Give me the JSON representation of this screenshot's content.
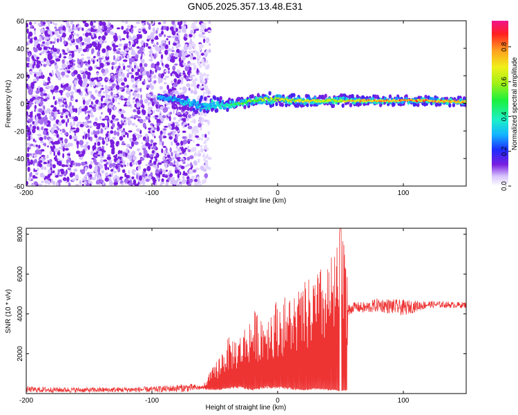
{
  "title": "GN05.2025.357.13.48.E31",
  "chart_data": [
    {
      "type": "heatmap",
      "xlabel": "Height of straight line (km)",
      "ylabel": "Frequency (Hz)",
      "xlim": [
        -200,
        150
      ],
      "ylim": [
        -60,
        60
      ],
      "xticks": [
        "-200",
        "-100",
        "0",
        "100"
      ],
      "xtick_values": [
        -200,
        -100,
        0,
        100
      ],
      "yticks": [
        "60",
        "40",
        "20",
        "0",
        "-20",
        "-40",
        "-60"
      ],
      "ytick_values": [
        60,
        40,
        20,
        0,
        -20,
        -40,
        -60
      ],
      "colorbar": {
        "label": "Normalized spectral amplitude",
        "range": [
          0,
          0.95
        ],
        "ticks": [
          "0.0",
          "0.2",
          "0.4",
          "0.6",
          "0.8"
        ],
        "tick_values": [
          0,
          0.2,
          0.4,
          0.6,
          0.8
        ]
      },
      "noise_region_x": [
        -200,
        -62
      ],
      "signal_track": {
        "x": [
          -95,
          -80,
          -70,
          -60,
          -50,
          -40,
          -30,
          -20,
          -10,
          0,
          10,
          20,
          30,
          40,
          50,
          60,
          80,
          100,
          120,
          150
        ],
        "center_freq": [
          4,
          3,
          0,
          -2,
          -1,
          -1,
          0,
          2,
          3,
          3,
          2,
          2,
          2,
          2,
          2,
          2,
          2,
          2,
          2,
          1
        ],
        "half_width": [
          2,
          3,
          6,
          8,
          7,
          5,
          4,
          5,
          6,
          6,
          5,
          5,
          5,
          5,
          5,
          4,
          4,
          4,
          4,
          4
        ],
        "amplitude": [
          0.3,
          0.28,
          0.35,
          0.3,
          0.35,
          0.5,
          0.55,
          0.6,
          0.65,
          0.7,
          0.7,
          0.7,
          0.75,
          0.7,
          0.7,
          0.8,
          0.85,
          0.85,
          0.85,
          0.8
        ]
      }
    },
    {
      "type": "line",
      "xlabel": "Height of straight line (km)",
      "ylabel": "SNR (10 * v/v)",
      "xlim": [
        -200,
        150
      ],
      "ylim": [
        0,
        8300
      ],
      "xticks": [
        "-200",
        "-100",
        "0",
        "100"
      ],
      "xtick_values": [
        -200,
        -100,
        0,
        100
      ],
      "yticks": [
        "8000",
        "6000",
        "4000",
        "2000"
      ],
      "ytick_values": [
        8000,
        6000,
        4000,
        2000
      ],
      "series": [
        {
          "name": "SNR",
          "color": "#ee3333",
          "envelope": {
            "x": [
              -200,
              -150,
              -100,
              -70,
              -60,
              -50,
              -40,
              -30,
              -20,
              -10,
              0,
              10,
              20,
              30,
              40,
              45,
              50,
              55,
              56,
              60,
              70,
              80,
              100,
              120,
              140,
              150
            ],
            "base": [
              50,
              50,
              60,
              80,
              200,
              150,
              200,
              250,
              150,
              250,
              250,
              200,
              150,
              200,
              150,
              150,
              100,
              150,
              3700,
              4100,
              4000,
              4100,
              3900,
              4300,
              4300,
              4300
            ],
            "peak": [
              350,
              300,
              350,
              500,
              400,
              1500,
              2800,
              3000,
              4200,
              4200,
              4800,
              5000,
              5500,
              6100,
              6700,
              7100,
              8300,
              7400,
              4500,
              4600,
              4600,
              4800,
              4700,
              4650,
              4600,
              4600
            ]
          }
        }
      ]
    }
  ],
  "colors": {
    "series": "#ee3333",
    "noise": "#7a1ee0"
  }
}
